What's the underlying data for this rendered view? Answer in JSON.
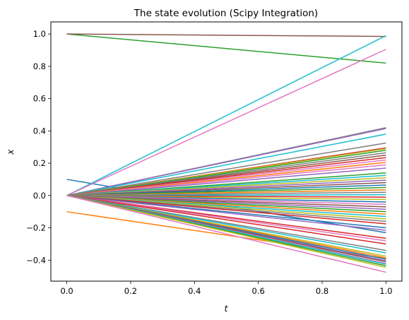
{
  "chart_data": {
    "type": "line",
    "title": "The state evolution (Scipy Integration)",
    "xlabel": "t",
    "ylabel": "x",
    "xlim": [
      -0.05,
      1.05
    ],
    "ylim": [
      -0.53,
      1.075
    ],
    "grid": false,
    "legend": "none",
    "xticks": [
      "0.0",
      "0.2",
      "0.4",
      "0.6",
      "0.8",
      "1.0"
    ],
    "yticks": [
      "−0.4",
      "−0.2",
      "0.0",
      "0.2",
      "0.4",
      "0.6",
      "0.8",
      "1.0"
    ],
    "x": [
      0,
      1
    ],
    "series": [
      {
        "color": "#1f77b4",
        "values": [
          0.1,
          -0.23
        ]
      },
      {
        "color": "#ff7f0e",
        "values": [
          -0.1,
          -0.39
        ]
      },
      {
        "color": "#2ca02c",
        "values": [
          1.0,
          0.82
        ]
      },
      {
        "color": "#8c564b",
        "values": [
          1.0,
          0.985
        ]
      },
      {
        "color": "#17becf",
        "values": [
          0.0,
          0.99
        ]
      },
      {
        "color": "#e377c2",
        "values": [
          0.0,
          0.905
        ]
      },
      {
        "color": "#7f7f7f",
        "values": [
          0.0,
          0.42
        ]
      },
      {
        "color": "#9467bd",
        "values": [
          0.0,
          0.415
        ]
      },
      {
        "color": "#17becf",
        "values": [
          0.0,
          0.38
        ]
      },
      {
        "color": "#7f7f7f",
        "values": [
          0.0,
          0.325
        ]
      },
      {
        "color": "#d62728",
        "values": [
          0.0,
          0.295
        ]
      },
      {
        "color": "#bcbd22",
        "values": [
          0.0,
          0.29
        ]
      },
      {
        "color": "#2ca02c",
        "values": [
          0.0,
          0.28
        ]
      },
      {
        "color": "#7f7f7f",
        "values": [
          0.0,
          0.265
        ]
      },
      {
        "color": "#8c564b",
        "values": [
          0.0,
          0.25
        ]
      },
      {
        "color": "#d62728",
        "values": [
          0.0,
          0.235
        ]
      },
      {
        "color": "#e377c2",
        "values": [
          0.0,
          0.22
        ]
      },
      {
        "color": "#ff7f0e",
        "values": [
          0.0,
          0.205
        ]
      },
      {
        "color": "#e377c2",
        "values": [
          0.0,
          0.19
        ]
      },
      {
        "color": "#9467bd",
        "values": [
          0.0,
          0.17
        ]
      },
      {
        "color": "#2ca02c",
        "values": [
          0.0,
          0.14
        ]
      },
      {
        "color": "#17becf",
        "values": [
          0.0,
          0.125
        ]
      },
      {
        "color": "#bcbd22",
        "values": [
          0.0,
          0.11
        ]
      },
      {
        "color": "#9467bd",
        "values": [
          0.0,
          0.095
        ]
      },
      {
        "color": "#8c564b",
        "values": [
          0.0,
          0.08
        ]
      },
      {
        "color": "#1f77b4",
        "values": [
          0.0,
          0.065
        ]
      },
      {
        "color": "#2ca02c",
        "values": [
          0.0,
          0.05
        ]
      },
      {
        "color": "#ff7f0e",
        "values": [
          0.0,
          0.035
        ]
      },
      {
        "color": "#7f7f7f",
        "values": [
          0.0,
          0.02
        ]
      },
      {
        "color": "#17becf",
        "values": [
          0.0,
          0.005
        ]
      },
      {
        "color": "#d62728",
        "values": [
          0.0,
          -0.01
        ]
      },
      {
        "color": "#bcbd22",
        "values": [
          0.0,
          -0.025
        ]
      },
      {
        "color": "#1f77b4",
        "values": [
          0.0,
          -0.04
        ]
      },
      {
        "color": "#e377c2",
        "values": [
          0.0,
          -0.055
        ]
      },
      {
        "color": "#8c564b",
        "values": [
          0.0,
          -0.07
        ]
      },
      {
        "color": "#9467bd",
        "values": [
          0.0,
          -0.085
        ]
      },
      {
        "color": "#2ca02c",
        "values": [
          0.0,
          -0.1
        ]
      },
      {
        "color": "#ff7f0e",
        "values": [
          0.0,
          -0.115
        ]
      },
      {
        "color": "#17becf",
        "values": [
          0.0,
          -0.13
        ]
      },
      {
        "color": "#bcbd22",
        "values": [
          0.0,
          -0.145
        ]
      },
      {
        "color": "#7f7f7f",
        "values": [
          0.0,
          -0.16
        ]
      },
      {
        "color": "#d62728",
        "values": [
          0.0,
          -0.175
        ]
      },
      {
        "color": "#1f77b4",
        "values": [
          0.0,
          -0.2
        ]
      },
      {
        "color": "#9467bd",
        "values": [
          0.0,
          -0.215
        ]
      },
      {
        "color": "#d62728",
        "values": [
          0.0,
          -0.265
        ]
      },
      {
        "color": "#e377c2",
        "values": [
          0.0,
          -0.28
        ]
      },
      {
        "color": "#d62728",
        "values": [
          0.0,
          -0.3
        ]
      },
      {
        "color": "#7f7f7f",
        "values": [
          0.0,
          -0.34
        ]
      },
      {
        "color": "#17becf",
        "values": [
          0.0,
          -0.355
        ]
      },
      {
        "color": "#bcbd22",
        "values": [
          0.0,
          -0.375
        ]
      },
      {
        "color": "#ff7f0e",
        "values": [
          0.0,
          -0.385
        ]
      },
      {
        "color": "#1f77b4",
        "values": [
          0.0,
          -0.395
        ]
      },
      {
        "color": "#9467bd",
        "values": [
          0.0,
          -0.405
        ]
      },
      {
        "color": "#8c564b",
        "values": [
          0.0,
          -0.41
        ]
      },
      {
        "color": "#e377c2",
        "values": [
          0.0,
          -0.42
        ]
      },
      {
        "color": "#17becf",
        "values": [
          0.0,
          -0.425
        ]
      },
      {
        "color": "#2ca02c",
        "values": [
          0.0,
          -0.435
        ]
      },
      {
        "color": "#bcbd22",
        "values": [
          0.0,
          -0.445
        ]
      },
      {
        "color": "#e377c2",
        "values": [
          0.0,
          -0.475
        ]
      }
    ]
  }
}
